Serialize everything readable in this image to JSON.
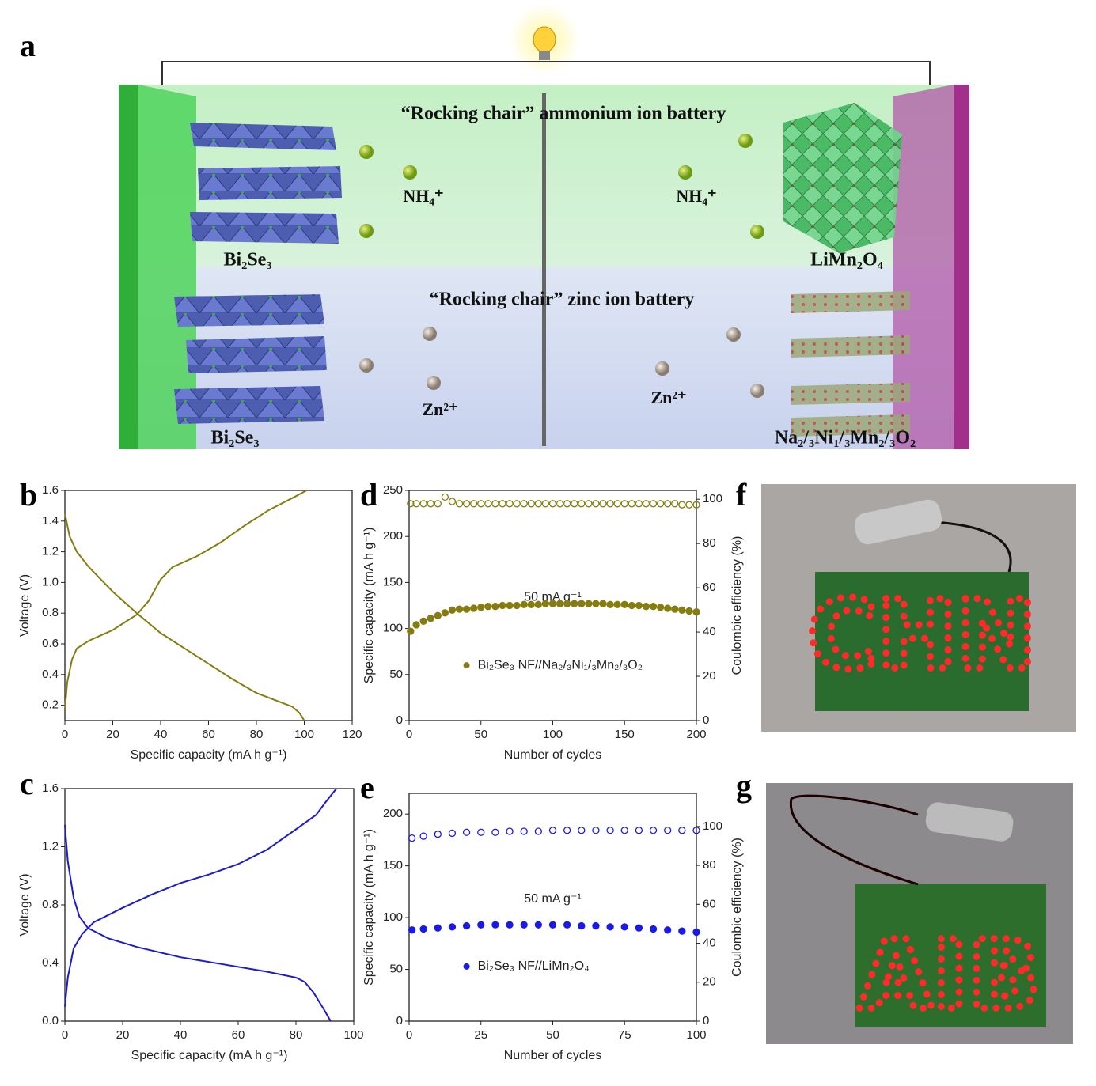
{
  "panel_labels": [
    "a",
    "b",
    "c",
    "d",
    "e",
    "f",
    "g"
  ],
  "diagram": {
    "top_title": "“Rocking chair” ammonium ion battery",
    "bottom_title": "“Rocking chair” zinc ion battery",
    "top_ion_left": "NH₄⁺",
    "top_ion_right": "NH₄⁺",
    "bottom_ion_left": "Zn²⁺",
    "bottom_ion_right": "Zn²⁺",
    "top_anode": "Bi₂Se₃",
    "bottom_anode": "Bi₂Se₃",
    "top_cathode": "LiMn₂O₄",
    "bottom_cathode": "Na₂/₃Ni₁/₃Mn₂/₃O₂"
  },
  "photos": {
    "f": {
      "led_text": "CHN"
    },
    "g": {
      "led_text": "AIB"
    }
  },
  "chart_data": [
    {
      "type": "line",
      "xlabel": "Specific capacity (mA h g⁻¹)",
      "ylabel": "Voltage (V)",
      "xlim": [
        0,
        120
      ],
      "xticks": [
        0,
        20,
        40,
        60,
        80,
        100,
        120
      ],
      "ylim": [
        0.1,
        1.6
      ],
      "yticks": [
        0.2,
        0.4,
        0.6,
        0.8,
        {
          "value": 1,
          "label": "1.0"
        },
        1.2,
        1.4,
        1.6
      ],
      "series": [
        {
          "color": "#857d12",
          "x": [
            0,
            1,
            3,
            5,
            10,
            20,
            30,
            35,
            40,
            45,
            55,
            65,
            75,
            85,
            95,
            101
          ],
          "values": [
            0.17,
            0.35,
            0.5,
            0.57,
            0.62,
            0.69,
            0.79,
            0.88,
            1.02,
            1.1,
            1.17,
            1.26,
            1.37,
            1.47,
            1.55,
            1.6
          ]
        },
        {
          "color": "#857d12",
          "x": [
            0,
            2,
            5,
            10,
            20,
            30,
            40,
            50,
            60,
            70,
            80,
            90,
            95,
            98,
            100
          ],
          "values": [
            1.45,
            1.3,
            1.2,
            1.1,
            0.94,
            0.8,
            0.67,
            0.57,
            0.47,
            0.37,
            0.28,
            0.22,
            0.19,
            0.15,
            0.1
          ]
        }
      ]
    },
    {
      "type": "line",
      "xlabel": "Specific capacity (mA h g⁻¹)",
      "ylabel": "Voltage (V)",
      "xlim": [
        0,
        100
      ],
      "xticks": [
        0,
        20,
        40,
        60,
        80,
        100
      ],
      "ylim": [
        0,
        1.6
      ],
      "yticks": [
        {
          "value": 0,
          "label": "0.0"
        },
        0.4,
        0.8,
        1.2,
        1.6
      ],
      "series": [
        {
          "color": "#1c1cc8",
          "x": [
            0,
            1,
            3,
            6,
            10,
            20,
            30,
            40,
            50,
            60,
            70,
            80,
            87,
            90,
            94
          ],
          "values": [
            0.1,
            0.3,
            0.5,
            0.6,
            0.68,
            0.78,
            0.87,
            0.95,
            1.01,
            1.08,
            1.18,
            1.32,
            1.42,
            1.5,
            1.6
          ]
        },
        {
          "color": "#1c1cc8",
          "x": [
            0,
            1,
            3,
            5,
            8,
            15,
            25,
            40,
            55,
            70,
            80,
            83,
            86,
            90,
            92
          ],
          "values": [
            1.35,
            1.1,
            0.85,
            0.72,
            0.64,
            0.57,
            0.51,
            0.44,
            0.39,
            0.34,
            0.3,
            0.27,
            0.2,
            0.07,
            0
          ]
        }
      ]
    },
    {
      "type": "scatter",
      "xlabel": "Number of cycles",
      "ylabel": "Specific capacity (mA h g⁻¹)",
      "y2label": "Coulombic efficiency (%)",
      "annotation": "50 mA g⁻¹",
      "legend": "lower center",
      "xlim": [
        0,
        200
      ],
      "xticks": [
        0,
        50,
        100,
        150,
        200
      ],
      "ylim": [
        0,
        250
      ],
      "yticks": [
        0,
        50,
        100,
        150,
        200,
        250
      ],
      "y2lim": [
        0,
        104
      ],
      "y2ticks": [
        0,
        20,
        40,
        60,
        80,
        100
      ],
      "x": [
        1,
        5,
        10,
        15,
        20,
        25,
        30,
        35,
        40,
        45,
        50,
        55,
        60,
        65,
        70,
        75,
        80,
        85,
        90,
        95,
        100,
        105,
        110,
        115,
        120,
        125,
        130,
        135,
        140,
        145,
        150,
        155,
        160,
        165,
        170,
        175,
        180,
        185,
        190,
        195,
        200
      ],
      "series": [
        {
          "name": "Bi₂Se₃ NF//Na₂/₃Ni₁/₃Mn₂/₃O₂",
          "color": "#857d12",
          "filled": true,
          "values": [
            97,
            104,
            108,
            111,
            114,
            117,
            120,
            121,
            121,
            122,
            123,
            124,
            124,
            125,
            125,
            125,
            126,
            126,
            126,
            127,
            127,
            127,
            127,
            127,
            127,
            127,
            127,
            127,
            126,
            126,
            126,
            125,
            125,
            124,
            124,
            123,
            122,
            121,
            120,
            119,
            118
          ]
        },
        {
          "color": "#857d12",
          "filled": false,
          "axis": "y2",
          "values": [
            98,
            98,
            98,
            98,
            98,
            101,
            99,
            98,
            98,
            98,
            98,
            98,
            98,
            98,
            98,
            98,
            98,
            98,
            98,
            98,
            98,
            98,
            98,
            98,
            98,
            98,
            98,
            98,
            98,
            98,
            98,
            98,
            98,
            98,
            98,
            98,
            98,
            98,
            97.5,
            97.5,
            97.5
          ]
        }
      ]
    },
    {
      "type": "scatter",
      "xlabel": "Number of cycles",
      "ylabel": "Specific capacity (mA h g⁻¹)",
      "y2label": "Coulombic efficiency (%)",
      "annotation": "50 mA g⁻¹",
      "legend": "lower center",
      "xlim": [
        0,
        100
      ],
      "xticks": [
        0,
        25,
        50,
        75,
        100
      ],
      "ylim": [
        0,
        220
      ],
      "yticks": [
        0,
        50,
        100,
        150,
        200
      ],
      "y2lim": [
        0,
        117
      ],
      "y2ticks": [
        0,
        20,
        40,
        60,
        80,
        100
      ],
      "x": [
        1,
        5,
        10,
        15,
        20,
        25,
        30,
        35,
        40,
        45,
        50,
        55,
        60,
        65,
        70,
        75,
        80,
        85,
        90,
        95,
        100
      ],
      "series": [
        {
          "name": "Bi₂Se₃ NF//LiMn₂O₄",
          "color": "#1a1ae6",
          "filled": true,
          "values": [
            88,
            89,
            90,
            91,
            92,
            93,
            93,
            93,
            93,
            93,
            93,
            93,
            92,
            92,
            91,
            91,
            90,
            89,
            88,
            87,
            86
          ]
        },
        {
          "color": "#1a1ae6",
          "filled": false,
          "axis": "y2",
          "values": [
            94,
            95,
            96,
            96.5,
            97,
            97,
            97,
            97.5,
            97.5,
            97.5,
            98,
            98,
            98,
            98,
            98,
            98,
            98,
            98,
            98,
            98,
            98
          ]
        }
      ]
    }
  ]
}
